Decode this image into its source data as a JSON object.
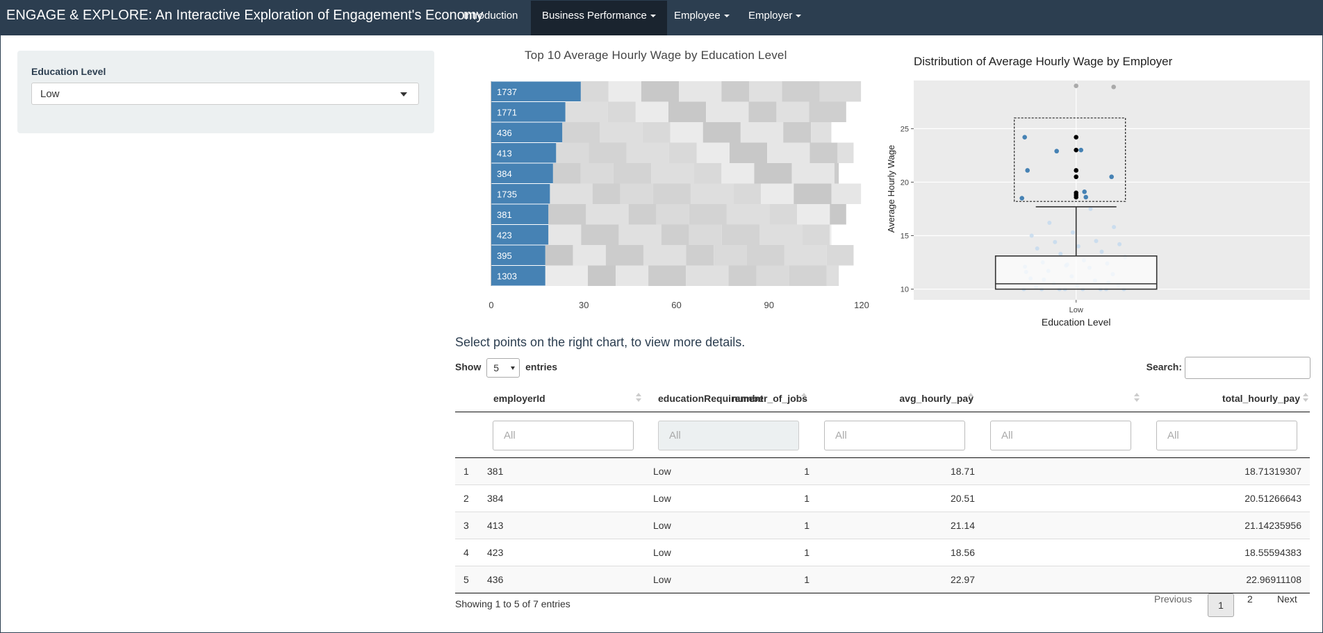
{
  "navbar": {
    "brand": "ENGAGE & EXPLORE: An Interactive Exploration of Engagement's Economy",
    "items": [
      {
        "label": "Introduction"
      },
      {
        "label": "Business Performance"
      },
      {
        "label": "Employee"
      },
      {
        "label": "Employer"
      }
    ]
  },
  "sidebar": {
    "label": "Education Level",
    "selected": "Low"
  },
  "charts": {
    "hint": "Select points on the right chart, to view more details."
  },
  "chart_data": [
    {
      "type": "bar",
      "orientation": "horizontal",
      "title": "Top 10 Average Hourly Wage by Education Level",
      "categories": [
        "1737",
        "1771",
        "436",
        "413",
        "384",
        "1735",
        "381",
        "423",
        "395",
        "1303"
      ],
      "values": [
        29,
        24,
        23,
        21,
        20,
        19,
        18.5,
        18.5,
        17.5,
        17.5
      ],
      "xlim": [
        0,
        120
      ],
      "xticks": [
        0,
        30,
        60,
        90,
        120
      ],
      "color": "#4682b4",
      "background": "gray checkered tiles"
    },
    {
      "type": "box",
      "title": "Distribution of Average Hourly Wage by Employer",
      "xlabel": "Education Level",
      "ylabel": "Average Hourly Wage",
      "category": "Low",
      "ylim": [
        9,
        29.5
      ],
      "yticks": [
        10,
        15,
        20,
        25
      ],
      "box": {
        "min": 10,
        "q1": 10,
        "median": 10.5,
        "q3": 13.1,
        "whisker_high": 17.7
      },
      "selected_points": [
        18.71,
        20.51,
        21.14,
        18.56,
        22.97,
        18.8,
        19.0
      ],
      "outliers": [
        24.2,
        23.0,
        22.9,
        21.1,
        20.5,
        19.1,
        18.6,
        18.5,
        29.0,
        28.9
      ],
      "jitter": [
        10,
        10,
        10,
        10,
        10,
        10,
        10,
        10,
        10.2,
        10.3,
        10.4,
        10.5,
        10.8,
        11,
        11.2,
        11.4,
        11.7,
        12,
        12.1,
        12.2,
        12.4,
        12.5,
        12.7,
        13,
        13.3,
        13.5,
        13.8,
        14,
        14.2,
        14.4,
        14.5,
        15,
        15.3,
        15.8,
        16.2,
        17.5,
        11.6,
        12.3,
        10.6,
        10.9
      ],
      "box_color": "#333333",
      "point_color": "#4682b4",
      "selected_color": "#000000"
    }
  ],
  "table": {
    "show_label": "Show",
    "entries_label": "entries",
    "length": "5",
    "search_label": "Search:",
    "columns": [
      "employerId",
      "educationRequirement",
      "number_of_jobs",
      "avg_hourly_pay",
      "total_hourly_pay"
    ],
    "filter_placeholder": "All",
    "rows": [
      {
        "idx": "1",
        "employerId": "381",
        "edu": "Low",
        "jobs": "1",
        "avg": "18.71",
        "total": "18.71319307"
      },
      {
        "idx": "2",
        "employerId": "384",
        "edu": "Low",
        "jobs": "1",
        "avg": "20.51",
        "total": "20.51266643"
      },
      {
        "idx": "3",
        "employerId": "413",
        "edu": "Low",
        "jobs": "1",
        "avg": "21.14",
        "total": "21.14235956"
      },
      {
        "idx": "4",
        "employerId": "423",
        "edu": "Low",
        "jobs": "1",
        "avg": "18.56",
        "total": "18.55594383"
      },
      {
        "idx": "5",
        "employerId": "436",
        "edu": "Low",
        "jobs": "1",
        "avg": "22.97",
        "total": "22.96911108"
      }
    ],
    "info": "Showing 1 to 5 of 7 entries",
    "pagination": {
      "previous": "Previous",
      "pages": [
        "1",
        "2"
      ],
      "next": "Next"
    }
  }
}
